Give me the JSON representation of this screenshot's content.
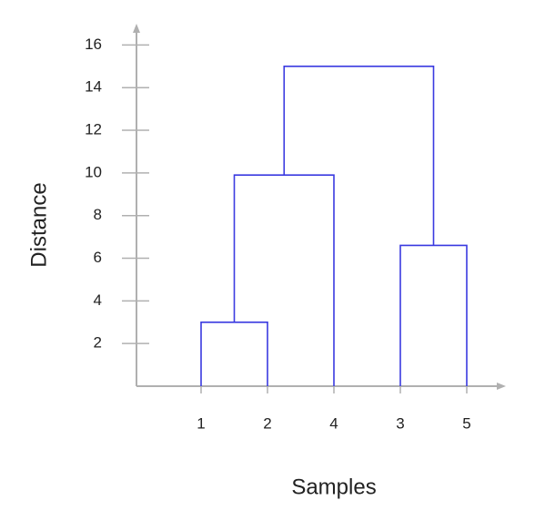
{
  "chart_data": {
    "type": "dendrogram",
    "xlabel": "Samples",
    "ylabel": "Distance",
    "categories": [
      "1",
      "2",
      "4",
      "3",
      "5"
    ],
    "merges": [
      {
        "children": [
          0,
          1
        ],
        "height": 3
      },
      {
        "children": [
          5,
          2
        ],
        "height": 9.9
      },
      {
        "children": [
          3,
          4
        ],
        "height": 6.6
      },
      {
        "children": [
          6,
          7
        ],
        "height": 15
      }
    ],
    "color": "#3a3ae0",
    "ylim": [
      0,
      17
    ],
    "yticks": [
      2,
      4,
      6,
      8,
      10,
      12,
      14,
      16
    ]
  }
}
